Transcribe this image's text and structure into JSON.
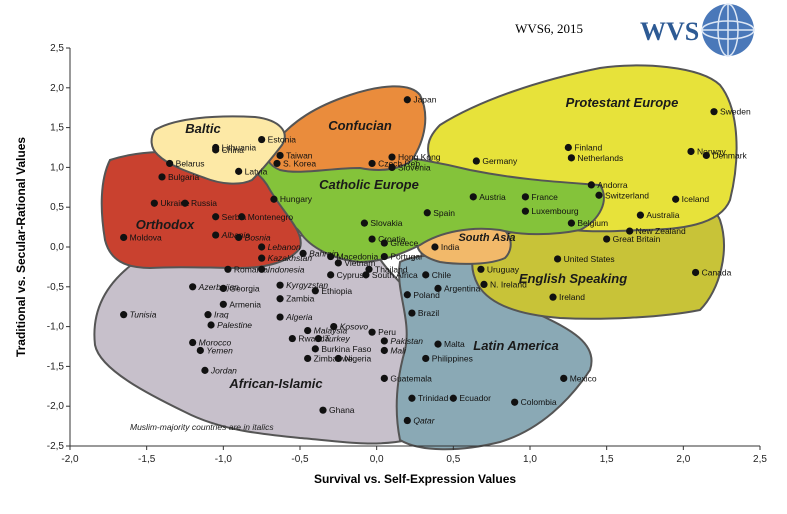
{
  "header": {
    "wave": "WVS6, 2015",
    "logo_text": "WVS"
  },
  "note": "Muslim-majority countries are in italics",
  "colors": {
    "Orthodox": "#c9412f",
    "Confucian": "#ea8c3c",
    "Baltic": "#fde9a6",
    "Catholic Europe": "#84c33a",
    "Protestant Europe": "#e7e23a",
    "English Speaking": "#c8c338",
    "South Asia": "#f2b96a",
    "Latin America": "#8aa9b5",
    "African-Islamic": "#c7c0cb"
  },
  "chart_data": {
    "type": "scatter",
    "xlabel": "Survival vs. Self-Expression Values",
    "ylabel": "Traditional vs. Secular-Rational Values",
    "xlim": [
      -2.0,
      2.5
    ],
    "ylim": [
      -2.5,
      2.5
    ],
    "xticks": [
      "-2,0",
      "-1,5",
      "-1,0",
      "-0,5",
      "0,0",
      "0,5",
      "1,0",
      "1,5",
      "2,0",
      "2,5"
    ],
    "yticks": [
      "2,5",
      "2,0",
      "1,5",
      "1,0",
      "0,5",
      "0,0",
      "-0,5",
      "-1,0",
      "-1,5",
      "-2,0",
      "-2,5"
    ],
    "grid": false,
    "regions": [
      {
        "name": "Orthodox",
        "label": "Orthodox"
      },
      {
        "name": "Confucian",
        "label": "Confucian"
      },
      {
        "name": "Baltic",
        "label": "Baltic"
      },
      {
        "name": "Catholic Europe",
        "label": "Catholic Europe"
      },
      {
        "name": "Protestant Europe",
        "label": "Protestant Europe"
      },
      {
        "name": "English Speaking",
        "label": "English Speaking"
      },
      {
        "name": "South Asia",
        "label": "South Asia"
      },
      {
        "name": "Latin America",
        "label": "Latin America"
      },
      {
        "name": "African-Islamic",
        "label": "African-Islamic"
      }
    ],
    "points": [
      {
        "name": "Japan",
        "x": 0.2,
        "y": 1.85,
        "italic": false
      },
      {
        "name": "Sweden",
        "x": 2.2,
        "y": 1.7,
        "italic": false
      },
      {
        "name": "Estonia",
        "x": -0.75,
        "y": 1.35,
        "italic": false
      },
      {
        "name": "Lithuania",
        "x": -1.05,
        "y": 1.25,
        "italic": false
      },
      {
        "name": "China",
        "x": -1.05,
        "y": 1.22,
        "italic": false
      },
      {
        "name": "Finland",
        "x": 1.25,
        "y": 1.25,
        "italic": false
      },
      {
        "name": "Norway",
        "x": 2.05,
        "y": 1.2,
        "italic": false
      },
      {
        "name": "Taiwan",
        "x": -0.63,
        "y": 1.15,
        "italic": false
      },
      {
        "name": "Hong Kong",
        "x": 0.1,
        "y": 1.13,
        "italic": false
      },
      {
        "name": "Netherlands",
        "x": 1.27,
        "y": 1.12,
        "italic": false
      },
      {
        "name": "Denmark",
        "x": 2.15,
        "y": 1.15,
        "italic": false
      },
      {
        "name": "Belarus",
        "x": -1.35,
        "y": 1.05,
        "italic": false
      },
      {
        "name": "S. Korea",
        "x": -0.65,
        "y": 1.05,
        "italic": false
      },
      {
        "name": "Czech Rep.",
        "x": -0.03,
        "y": 1.05,
        "italic": false
      },
      {
        "name": "Germany",
        "x": 0.65,
        "y": 1.08,
        "italic": false
      },
      {
        "name": "Slovenia",
        "x": 0.1,
        "y": 1.0,
        "italic": false
      },
      {
        "name": "Latvia",
        "x": -0.9,
        "y": 0.95,
        "italic": false
      },
      {
        "name": "Bulgaria",
        "x": -1.4,
        "y": 0.88,
        "italic": false
      },
      {
        "name": "Andorra",
        "x": 1.4,
        "y": 0.78,
        "italic": false
      },
      {
        "name": "France",
        "x": 0.97,
        "y": 0.63,
        "italic": false
      },
      {
        "name": "Austria",
        "x": 0.63,
        "y": 0.63,
        "italic": false
      },
      {
        "name": "Switzerland",
        "x": 1.45,
        "y": 0.65,
        "italic": false
      },
      {
        "name": "Iceland",
        "x": 1.95,
        "y": 0.6,
        "italic": false
      },
      {
        "name": "Ukraine",
        "x": -1.45,
        "y": 0.55,
        "italic": false
      },
      {
        "name": "Russia",
        "x": -1.25,
        "y": 0.55,
        "italic": false
      },
      {
        "name": "Hungary",
        "x": -0.67,
        "y": 0.6,
        "italic": false
      },
      {
        "name": "Luxembourg",
        "x": 0.97,
        "y": 0.45,
        "italic": false
      },
      {
        "name": "Spain",
        "x": 0.33,
        "y": 0.43,
        "italic": false
      },
      {
        "name": "Australia",
        "x": 1.72,
        "y": 0.4,
        "italic": false
      },
      {
        "name": "Serbia",
        "x": -1.05,
        "y": 0.38,
        "italic": false
      },
      {
        "name": "Montenegro",
        "x": -0.88,
        "y": 0.38,
        "italic": false
      },
      {
        "name": "Slovakia",
        "x": -0.08,
        "y": 0.3,
        "italic": false
      },
      {
        "name": "Belgium",
        "x": 1.27,
        "y": 0.3,
        "italic": false
      },
      {
        "name": "New Zealand",
        "x": 1.65,
        "y": 0.2,
        "italic": false
      },
      {
        "name": "Moldova",
        "x": -1.65,
        "y": 0.12,
        "italic": false
      },
      {
        "name": "Albania",
        "x": -1.05,
        "y": 0.15,
        "italic": true
      },
      {
        "name": "Bosnia",
        "x": -0.9,
        "y": 0.12,
        "italic": true
      },
      {
        "name": "Croatia",
        "x": -0.03,
        "y": 0.1,
        "italic": false
      },
      {
        "name": "Greece",
        "x": 0.05,
        "y": 0.05,
        "italic": false
      },
      {
        "name": "Great Britain",
        "x": 1.5,
        "y": 0.1,
        "italic": false
      },
      {
        "name": "Lebanon",
        "x": -0.75,
        "y": 0.0,
        "italic": true
      },
      {
        "name": "Bahrain",
        "x": -0.48,
        "y": -0.08,
        "italic": true
      },
      {
        "name": "India",
        "x": 0.38,
        "y": 0.0,
        "italic": false
      },
      {
        "name": "Macedonia",
        "x": -0.3,
        "y": -0.12,
        "italic": false
      },
      {
        "name": "Kazakhstan",
        "x": -0.75,
        "y": -0.14,
        "italic": true
      },
      {
        "name": "Portugal",
        "x": 0.05,
        "y": -0.12,
        "italic": false
      },
      {
        "name": "United States",
        "x": 1.18,
        "y": -0.15,
        "italic": false
      },
      {
        "name": "Vietnam",
        "x": -0.25,
        "y": -0.2,
        "italic": false
      },
      {
        "name": "Thailand",
        "x": -0.05,
        "y": -0.28,
        "italic": false
      },
      {
        "name": "Indonesia",
        "x": -0.75,
        "y": -0.28,
        "italic": true
      },
      {
        "name": "Uruguay",
        "x": 0.68,
        "y": -0.28,
        "italic": false
      },
      {
        "name": "Romania",
        "x": -0.97,
        "y": -0.28,
        "italic": false
      },
      {
        "name": "Canada",
        "x": 2.08,
        "y": -0.32,
        "italic": false
      },
      {
        "name": "Cyprus",
        "x": -0.3,
        "y": -0.35,
        "italic": false
      },
      {
        "name": "South Africa",
        "x": -0.07,
        "y": -0.35,
        "italic": false
      },
      {
        "name": "Chile",
        "x": 0.32,
        "y": -0.35,
        "italic": false
      },
      {
        "name": "Kyrgyzstan",
        "x": -0.63,
        "y": -0.48,
        "italic": true
      },
      {
        "name": "Azerbaijan",
        "x": -1.2,
        "y": -0.5,
        "italic": true
      },
      {
        "name": "Georgia",
        "x": -1.0,
        "y": -0.52,
        "italic": false
      },
      {
        "name": "Argentina",
        "x": 0.4,
        "y": -0.52,
        "italic": false
      },
      {
        "name": "N. Ireland",
        "x": 0.7,
        "y": -0.47,
        "italic": false
      },
      {
        "name": "Ethiopia",
        "x": -0.4,
        "y": -0.55,
        "italic": false
      },
      {
        "name": "Poland",
        "x": 0.2,
        "y": -0.6,
        "italic": false
      },
      {
        "name": "Ireland",
        "x": 1.15,
        "y": -0.63,
        "italic": false
      },
      {
        "name": "Zambia",
        "x": -0.63,
        "y": -0.65,
        "italic": false
      },
      {
        "name": "Armenia",
        "x": -1.0,
        "y": -0.72,
        "italic": false
      },
      {
        "name": "Tunisia",
        "x": -1.65,
        "y": -0.85,
        "italic": true
      },
      {
        "name": "Iraq",
        "x": -1.1,
        "y": -0.85,
        "italic": true
      },
      {
        "name": "Algeria",
        "x": -0.63,
        "y": -0.88,
        "italic": true
      },
      {
        "name": "Brazil",
        "x": 0.23,
        "y": -0.83,
        "italic": false
      },
      {
        "name": "Palestine",
        "x": -1.08,
        "y": -0.98,
        "italic": true
      },
      {
        "name": "Malaysia",
        "x": -0.45,
        "y": -1.05,
        "italic": true
      },
      {
        "name": "Kosovo",
        "x": -0.28,
        "y": -1.0,
        "italic": true
      },
      {
        "name": "Peru",
        "x": -0.03,
        "y": -1.07,
        "italic": false
      },
      {
        "name": "Rwanda",
        "x": -0.55,
        "y": -1.15,
        "italic": false
      },
      {
        "name": "Turkey",
        "x": -0.38,
        "y": -1.15,
        "italic": true
      },
      {
        "name": "Pakistan",
        "x": 0.05,
        "y": -1.18,
        "italic": true
      },
      {
        "name": "Morocco",
        "x": -1.2,
        "y": -1.2,
        "italic": true
      },
      {
        "name": "Malta",
        "x": 0.4,
        "y": -1.22,
        "italic": false
      },
      {
        "name": "Burkina Faso",
        "x": -0.4,
        "y": -1.28,
        "italic": false
      },
      {
        "name": "Mali",
        "x": 0.05,
        "y": -1.3,
        "italic": true
      },
      {
        "name": "Yemen",
        "x": -1.15,
        "y": -1.3,
        "italic": true
      },
      {
        "name": "Philippines",
        "x": 0.32,
        "y": -1.4,
        "italic": false
      },
      {
        "name": "Zimbabwe",
        "x": -0.45,
        "y": -1.4,
        "italic": false
      },
      {
        "name": "Nigeria",
        "x": -0.25,
        "y": -1.4,
        "italic": false
      },
      {
        "name": "Jordan",
        "x": -1.12,
        "y": -1.55,
        "italic": true
      },
      {
        "name": "Guatemala",
        "x": 0.05,
        "y": -1.65,
        "italic": false
      },
      {
        "name": "Mexico",
        "x": 1.22,
        "y": -1.65,
        "italic": false
      },
      {
        "name": "Ecuador",
        "x": 0.5,
        "y": -1.9,
        "italic": false
      },
      {
        "name": "Colombia",
        "x": 0.9,
        "y": -1.95,
        "italic": false
      },
      {
        "name": "Trinidad",
        "x": 0.23,
        "y": -1.9,
        "italic": false
      },
      {
        "name": "Ghana",
        "x": -0.35,
        "y": -2.05,
        "italic": false
      },
      {
        "name": "Qatar",
        "x": 0.2,
        "y": -2.18,
        "italic": true
      }
    ]
  }
}
